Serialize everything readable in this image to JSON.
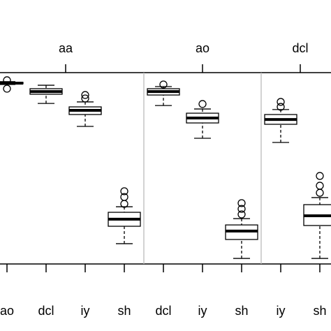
{
  "chart_data": {
    "type": "boxplot",
    "ylim": [
      0,
      100
    ],
    "color": "#000000",
    "separator_color": "#bbbbbb",
    "panels": [
      {
        "name": "aa",
        "groups": [
          {
            "name": "ao",
            "min": 93.8,
            "q1": 94.2,
            "median": 94.5,
            "q3": 94.9,
            "max": 95.3,
            "outliers": [
              96.0,
              91.6
            ]
          },
          {
            "name": "dcl",
            "min": 83.9,
            "q1": 88.7,
            "median": 90.1,
            "q3": 91.6,
            "max": 93.4,
            "outliers": []
          },
          {
            "name": "iy",
            "min": 71.9,
            "q1": 78.1,
            "median": 80.3,
            "q3": 82.1,
            "max": 84.7,
            "outliers": [
              86.5,
              88.3
            ]
          },
          {
            "name": "sh",
            "min": 10.6,
            "q1": 19.7,
            "median": 23.4,
            "q3": 27.0,
            "max": 29.9,
            "outliers": [
              31.4,
              35.0,
              38.0
            ]
          }
        ]
      },
      {
        "name": "ao",
        "groups": [
          {
            "name": "dcl",
            "min": 82.8,
            "q1": 88.3,
            "median": 90.1,
            "q3": 91.6,
            "max": 92.7,
            "outliers": [
              93.8
            ]
          },
          {
            "name": "iy",
            "min": 65.7,
            "q1": 73.7,
            "median": 76.3,
            "q3": 78.8,
            "max": 81.0,
            "outliers": [
              83.6
            ]
          },
          {
            "name": "sh",
            "min": 2.9,
            "q1": 12.8,
            "median": 17.2,
            "q3": 20.4,
            "max": 23.7,
            "outliers": [
              25.9,
              28.8,
              31.8
            ]
          }
        ]
      },
      {
        "name": "dcl",
        "groups": [
          {
            "name": "iy",
            "min": 63.5,
            "q1": 73.0,
            "median": 75.5,
            "q3": 78.1,
            "max": 80.7,
            "outliers": [
              82.1,
              84.7
            ]
          },
          {
            "name": "sh",
            "min": 2.9,
            "q1": 20.1,
            "median": 25.2,
            "q3": 31.0,
            "max": 34.7,
            "outliers": [
              37.2,
              40.9,
              46.0
            ]
          }
        ]
      }
    ]
  }
}
